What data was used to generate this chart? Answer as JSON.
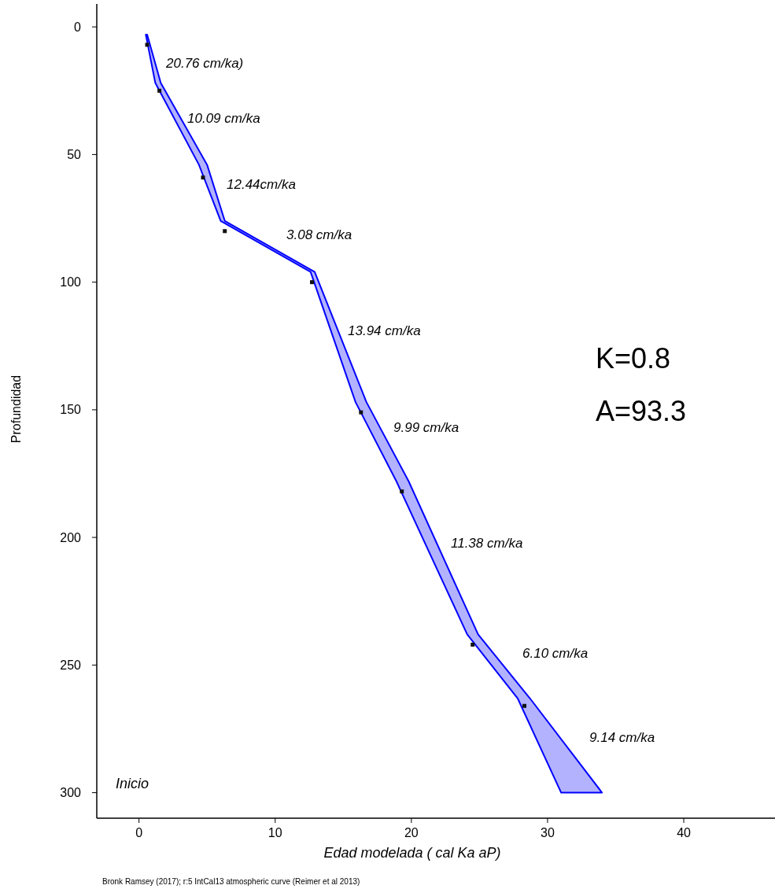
{
  "chart_data": {
    "type": "area",
    "xlabel": "Edad modelada ( cal Ka aP)",
    "ylabel": "Profundidad",
    "xlim": [
      -3.1,
      46.7
    ],
    "ylim": [
      310,
      -9
    ],
    "xticks": [
      0,
      10,
      20,
      30,
      40
    ],
    "yticks": [
      0,
      50,
      100,
      150,
      200,
      250,
      300
    ],
    "grid": false,
    "series": [
      {
        "color": "#0000ff",
        "x": [
          0.5,
          1.2,
          4.4,
          6.0,
          12.6,
          15.9,
          18.9,
          24.1,
          27.8,
          31.0,
          34.0,
          28.7,
          24.9,
          19.8,
          16.7,
          12.9,
          6.3,
          5.0,
          1.6,
          0.6
        ],
        "values": [
          3,
          22,
          54,
          76,
          96,
          147,
          178,
          238,
          263,
          300,
          300,
          263,
          238,
          178,
          147,
          96,
          76,
          54,
          22,
          3
        ]
      },
      {
        "type": "scatter",
        "color": "#111111",
        "marker": "square",
        "x": [
          0.6,
          1.5,
          4.7,
          6.3,
          12.7,
          16.3,
          19.3,
          24.5,
          28.3
        ],
        "values": [
          7,
          25,
          59,
          80,
          100,
          151,
          182,
          242,
          266
        ]
      }
    ],
    "annotations": [
      "20.76 cm/ka)",
      "10.09 cm/ka",
      "12.44cm/ka",
      "3.08 cm/ka",
      "13.94 cm/ka",
      "9.99 cm/ka",
      "11.38 cm/ka",
      "6.10 cm/ka",
      "9.14 cm/ka",
      "K=0.8",
      "A=93.3",
      "Inicio",
      "Bronk Ramsey (2017); r:5 IntCal13 atmospheric curve (Reimer et al 2013)"
    ]
  }
}
